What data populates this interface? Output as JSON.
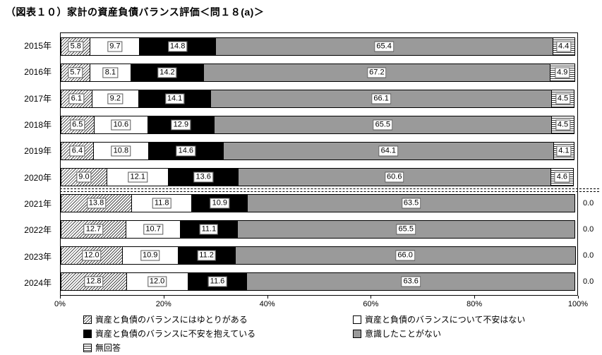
{
  "chart_data": {
    "type": "bar",
    "orientation": "horizontal",
    "stacked": true,
    "title": "（図表１０）家計の資産負債バランス評価＜問１８(a)＞",
    "categories": [
      "2015年",
      "2016年",
      "2017年",
      "2018年",
      "2019年",
      "2020年",
      "2021年",
      "2022年",
      "2023年",
      "2024年"
    ],
    "series": [
      {
        "name": "資産と負債のバランスにはゆとりがある",
        "style": "hatch-diagonal",
        "values": [
          5.8,
          5.7,
          6.1,
          6.5,
          6.4,
          9.0,
          13.8,
          12.7,
          12.0,
          12.8
        ]
      },
      {
        "name": "資産と負債のバランスについて不安はない",
        "style": "white",
        "values": [
          9.7,
          8.1,
          9.2,
          10.6,
          10.8,
          12.1,
          11.8,
          10.7,
          10.9,
          12.0
        ]
      },
      {
        "name": "資産と負債のバランスに不安を抱えている",
        "style": "black",
        "values": [
          14.8,
          14.2,
          14.1,
          12.9,
          14.6,
          13.6,
          10.9,
          11.1,
          11.2,
          11.6
        ]
      },
      {
        "name": "意識したことがない",
        "style": "gray",
        "values": [
          65.4,
          67.2,
          66.1,
          65.5,
          64.1,
          60.6,
          63.5,
          65.5,
          66.0,
          63.6
        ]
      },
      {
        "name": "無回答",
        "style": "hatch-horizontal",
        "values": [
          4.4,
          4.9,
          4.5,
          4.5,
          4.1,
          4.6,
          0.0,
          0.0,
          0.0,
          0.0
        ]
      }
    ],
    "x_tick_labels": [
      "0%",
      "20%",
      "40%",
      "60%",
      "80%",
      "100%"
    ],
    "xlim": [
      0,
      100
    ],
    "legend_position": "bottom",
    "legend_columns": 2,
    "divider_after_category": "2020年",
    "colors": {
      "gray": "#9a9a9a",
      "black": "#000000",
      "white": "#ffffff",
      "border": "#000000",
      "label_box_border": "#595959"
    }
  }
}
